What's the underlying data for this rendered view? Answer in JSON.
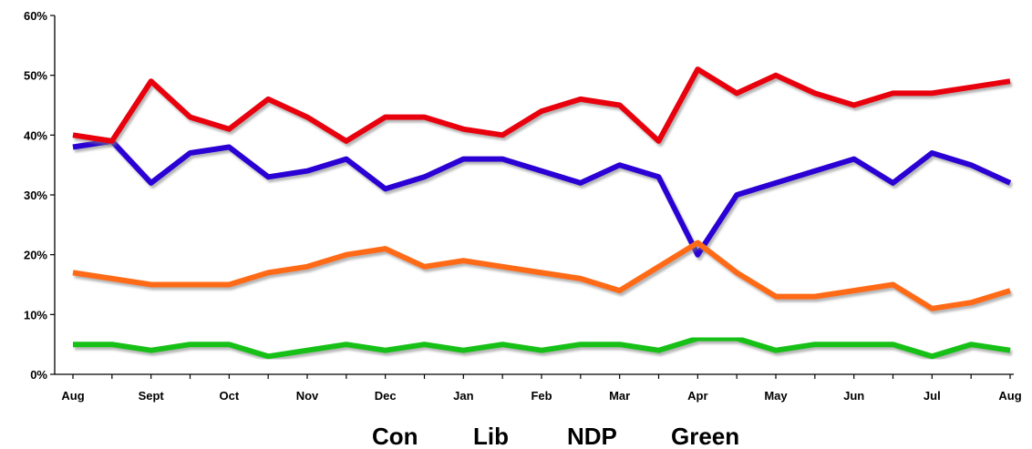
{
  "chart_data": {
    "type": "line",
    "title": "",
    "xlabel": "",
    "ylabel": "",
    "x_tick_labels": [
      "Aug",
      "Sept",
      "Oct",
      "Nov",
      "Dec",
      "Jan",
      "Feb",
      "Mar",
      "Apr",
      "May",
      "Jun",
      "Jul",
      "Aug"
    ],
    "y_tick_labels": [
      "0%",
      "10%",
      "20%",
      "30%",
      "40%",
      "50%",
      "60%"
    ],
    "ylim": [
      0,
      60
    ],
    "y_unit": "%",
    "grid": false,
    "legend_position": "bottom",
    "series": [
      {
        "name": "Con",
        "color": "#2b00d4",
        "values": [
          38,
          39,
          32,
          37,
          38,
          33,
          34,
          36,
          31,
          33,
          36,
          36,
          34,
          32,
          35,
          33,
          20,
          30,
          32,
          34,
          36,
          32,
          37,
          35,
          32
        ]
      },
      {
        "name": "Lib",
        "color": "#e8000b",
        "values": [
          40,
          39,
          49,
          43,
          41,
          46,
          43,
          39,
          43,
          43,
          41,
          40,
          44,
          46,
          45,
          39,
          51,
          47,
          50,
          47,
          45,
          47,
          47,
          48,
          49
        ]
      },
      {
        "name": "NDP",
        "color": "#ff6a13",
        "values": [
          17,
          16,
          15,
          15,
          15,
          17,
          18,
          20,
          21,
          18,
          19,
          18,
          17,
          16,
          14,
          18,
          22,
          17,
          13,
          13,
          14,
          15,
          11,
          12,
          14
        ]
      },
      {
        "name": "Green",
        "color": "#12c012",
        "values": [
          5,
          5,
          4,
          5,
          5,
          3,
          4,
          5,
          4,
          5,
          4,
          5,
          4,
          5,
          5,
          4,
          6,
          6,
          4,
          5,
          5,
          5,
          3,
          5,
          4
        ]
      }
    ]
  }
}
